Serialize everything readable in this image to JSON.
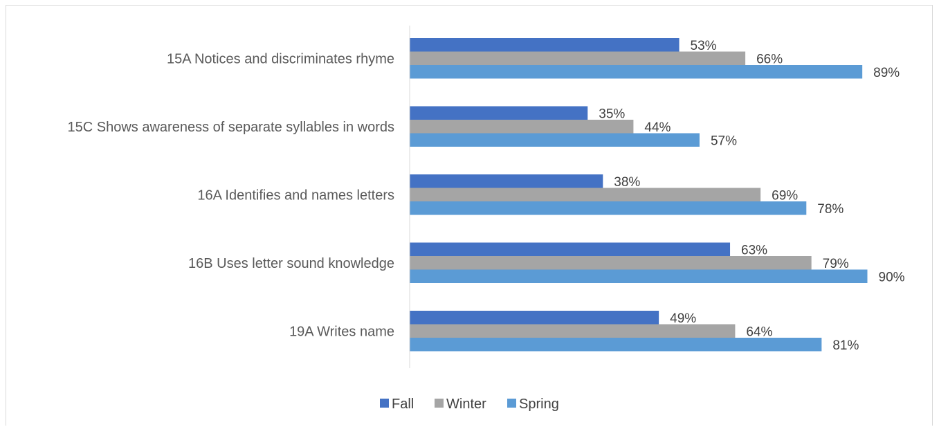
{
  "chart_data": {
    "type": "bar",
    "orientation": "horizontal",
    "title": "",
    "xlabel": "",
    "ylabel": "",
    "xlim": [
      0,
      100
    ],
    "grid": false,
    "legend_position": "bottom",
    "categories": [
      "15A Notices and discriminates rhyme",
      "15C Shows awareness of separate syllables in words",
      "16A Identifies and names letters",
      "16B Uses letter sound knowledge",
      "19A Writes name"
    ],
    "series": [
      {
        "name": "Fall",
        "color": "#4472c4",
        "values": [
          53,
          35,
          38,
          63,
          49
        ],
        "labels": [
          "53%",
          "35%",
          "38%",
          "63%",
          "49%"
        ]
      },
      {
        "name": "Winter",
        "color": "#a5a5a5",
        "values": [
          66,
          44,
          69,
          79,
          64
        ],
        "labels": [
          "66%",
          "44%",
          "69%",
          "79%",
          "64%"
        ]
      },
      {
        "name": "Spring",
        "color": "#5b9bd5",
        "values": [
          89,
          57,
          78,
          90,
          81
        ],
        "labels": [
          "89%",
          "57%",
          "78%",
          "90%",
          "81%"
        ]
      }
    ]
  }
}
